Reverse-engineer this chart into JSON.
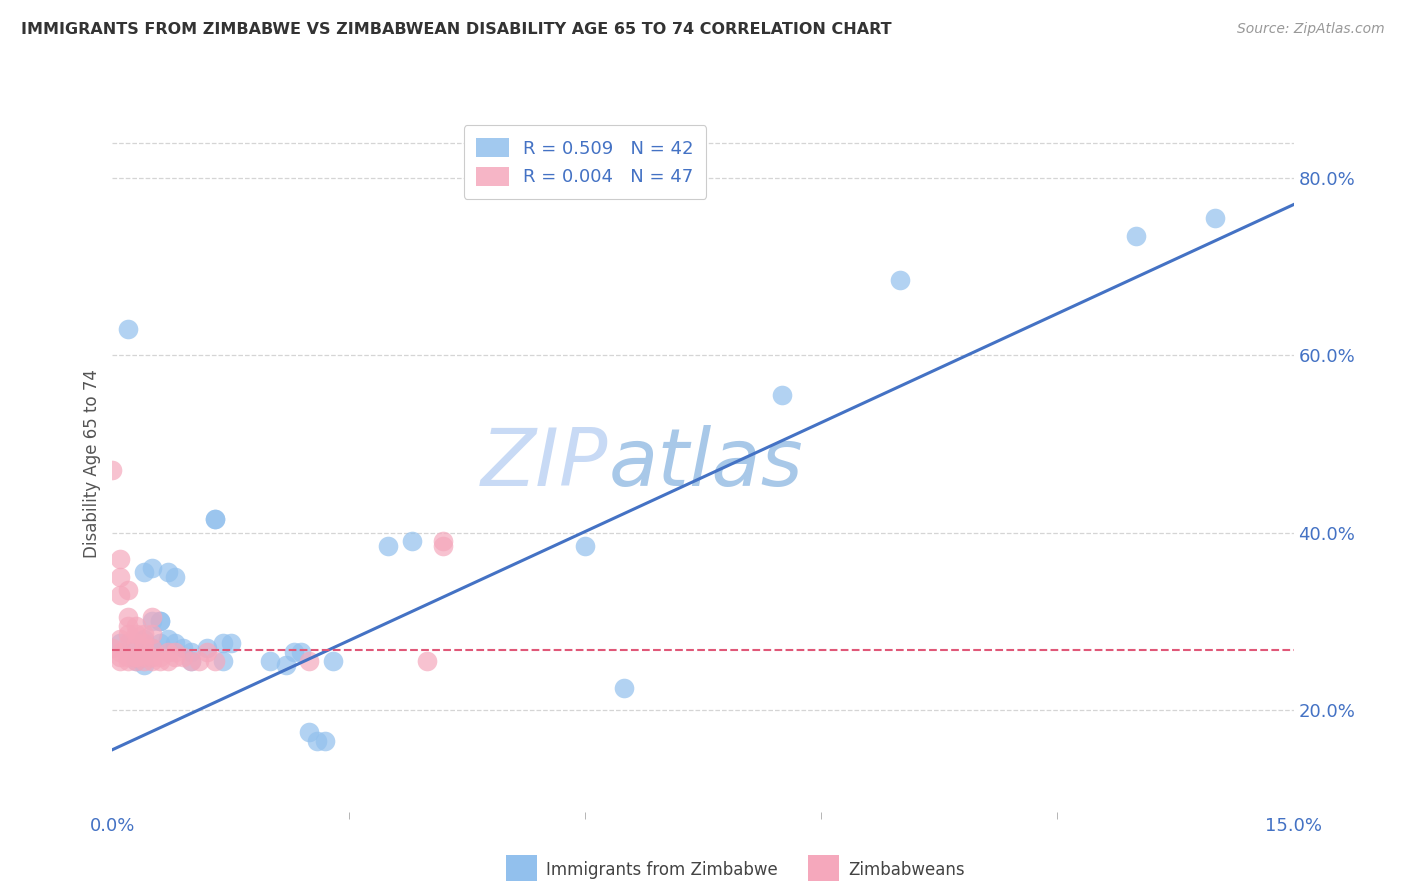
{
  "title": "IMMIGRANTS FROM ZIMBABWE VS ZIMBABWEAN DISABILITY AGE 65 TO 74 CORRELATION CHART",
  "source": "Source: ZipAtlas.com",
  "ylabel_left": "Disability Age 65 to 74",
  "legend_labels": [
    "Immigrants from Zimbabwe",
    "Zimbabweans"
  ],
  "blue_R": 0.509,
  "blue_N": 42,
  "pink_R": 0.004,
  "pink_N": 47,
  "blue_color": "#92c0ed",
  "pink_color": "#f5a8bc",
  "trend_blue_color": "#4472c4",
  "trend_pink_color": "#e05878",
  "watermark_zip": "ZIP",
  "watermark_atlas": "atlas",
  "watermark_color_zip": "#c8daf5",
  "watermark_color_atlas": "#a8c8e8",
  "xmin": 0.0,
  "xmax": 0.15,
  "ymin": 0.085,
  "ymax": 0.87,
  "right_yticks": [
    0.2,
    0.4,
    0.6,
    0.8
  ],
  "right_yticklabels": [
    "20.0%",
    "40.0%",
    "60.0%",
    "80.0%"
  ],
  "grid_color": "#d5d5d5",
  "background_color": "#ffffff",
  "blue_points": [
    [
      0.001,
      0.275
    ],
    [
      0.002,
      0.63
    ],
    [
      0.003,
      0.255
    ],
    [
      0.003,
      0.27
    ],
    [
      0.004,
      0.25
    ],
    [
      0.004,
      0.28
    ],
    [
      0.004,
      0.355
    ],
    [
      0.005,
      0.27
    ],
    [
      0.005,
      0.3
    ],
    [
      0.005,
      0.36
    ],
    [
      0.006,
      0.275
    ],
    [
      0.006,
      0.3
    ],
    [
      0.006,
      0.3
    ],
    [
      0.007,
      0.28
    ],
    [
      0.007,
      0.355
    ],
    [
      0.008,
      0.275
    ],
    [
      0.008,
      0.35
    ],
    [
      0.009,
      0.27
    ],
    [
      0.01,
      0.255
    ],
    [
      0.01,
      0.265
    ],
    [
      0.012,
      0.27
    ],
    [
      0.013,
      0.415
    ],
    [
      0.013,
      0.415
    ],
    [
      0.014,
      0.255
    ],
    [
      0.014,
      0.275
    ],
    [
      0.015,
      0.275
    ],
    [
      0.02,
      0.255
    ],
    [
      0.022,
      0.25
    ],
    [
      0.023,
      0.265
    ],
    [
      0.024,
      0.265
    ],
    [
      0.025,
      0.175
    ],
    [
      0.026,
      0.165
    ],
    [
      0.027,
      0.165
    ],
    [
      0.028,
      0.255
    ],
    [
      0.035,
      0.385
    ],
    [
      0.038,
      0.39
    ],
    [
      0.06,
      0.385
    ],
    [
      0.065,
      0.225
    ],
    [
      0.085,
      0.555
    ],
    [
      0.1,
      0.685
    ],
    [
      0.13,
      0.735
    ],
    [
      0.14,
      0.755
    ]
  ],
  "pink_points": [
    [
      0.0,
      0.47
    ],
    [
      0.0,
      0.27
    ],
    [
      0.001,
      0.26
    ],
    [
      0.001,
      0.255
    ],
    [
      0.001,
      0.265
    ],
    [
      0.001,
      0.28
    ],
    [
      0.001,
      0.33
    ],
    [
      0.001,
      0.35
    ],
    [
      0.001,
      0.37
    ],
    [
      0.002,
      0.255
    ],
    [
      0.002,
      0.26
    ],
    [
      0.002,
      0.275
    ],
    [
      0.002,
      0.285
    ],
    [
      0.002,
      0.295
    ],
    [
      0.002,
      0.305
    ],
    [
      0.002,
      0.335
    ],
    [
      0.003,
      0.255
    ],
    [
      0.003,
      0.26
    ],
    [
      0.003,
      0.26
    ],
    [
      0.003,
      0.275
    ],
    [
      0.003,
      0.285
    ],
    [
      0.003,
      0.295
    ],
    [
      0.004,
      0.255
    ],
    [
      0.004,
      0.26
    ],
    [
      0.004,
      0.27
    ],
    [
      0.004,
      0.275
    ],
    [
      0.004,
      0.285
    ],
    [
      0.005,
      0.255
    ],
    [
      0.005,
      0.26
    ],
    [
      0.005,
      0.27
    ],
    [
      0.005,
      0.285
    ],
    [
      0.005,
      0.305
    ],
    [
      0.006,
      0.255
    ],
    [
      0.006,
      0.26
    ],
    [
      0.007,
      0.265
    ],
    [
      0.007,
      0.255
    ],
    [
      0.008,
      0.265
    ],
    [
      0.008,
      0.26
    ],
    [
      0.009,
      0.26
    ],
    [
      0.01,
      0.255
    ],
    [
      0.011,
      0.255
    ],
    [
      0.012,
      0.265
    ],
    [
      0.013,
      0.255
    ],
    [
      0.025,
      0.255
    ],
    [
      0.04,
      0.255
    ],
    [
      0.042,
      0.385
    ],
    [
      0.042,
      0.39
    ]
  ],
  "blue_trendline": [
    [
      0.0,
      0.155
    ],
    [
      0.15,
      0.77
    ]
  ],
  "pink_trendline": [
    [
      0.0,
      0.268
    ],
    [
      0.15,
      0.268
    ]
  ]
}
